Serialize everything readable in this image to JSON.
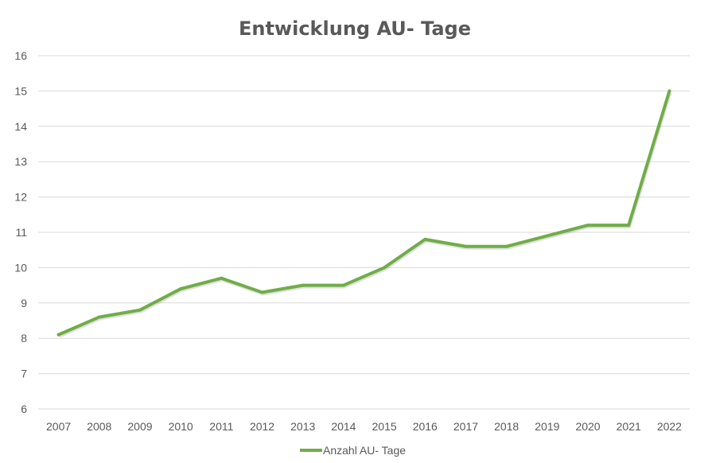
{
  "chart_data": {
    "type": "line",
    "title": "Entwicklung AU- Tage",
    "xlabel": "",
    "ylabel": "",
    "categories": [
      "2007",
      "2008",
      "2009",
      "2010",
      "2011",
      "2012",
      "2013",
      "2014",
      "2015",
      "2016",
      "2017",
      "2018",
      "2019",
      "2020",
      "2021",
      "2022"
    ],
    "series": [
      {
        "name": "Anzahl AU- Tage",
        "color": "#70ad47",
        "values": [
          8.1,
          8.6,
          8.8,
          9.4,
          9.7,
          9.3,
          9.5,
          9.5,
          10.0,
          10.8,
          10.6,
          10.6,
          10.9,
          11.2,
          11.2,
          15.0
        ]
      }
    ],
    "ylim": [
      6,
      16
    ],
    "yticks": [
      "6",
      "7",
      "8",
      "9",
      "10",
      "11",
      "12",
      "13",
      "14",
      "15",
      "16"
    ],
    "grid": true,
    "legend_position": "bottom"
  }
}
